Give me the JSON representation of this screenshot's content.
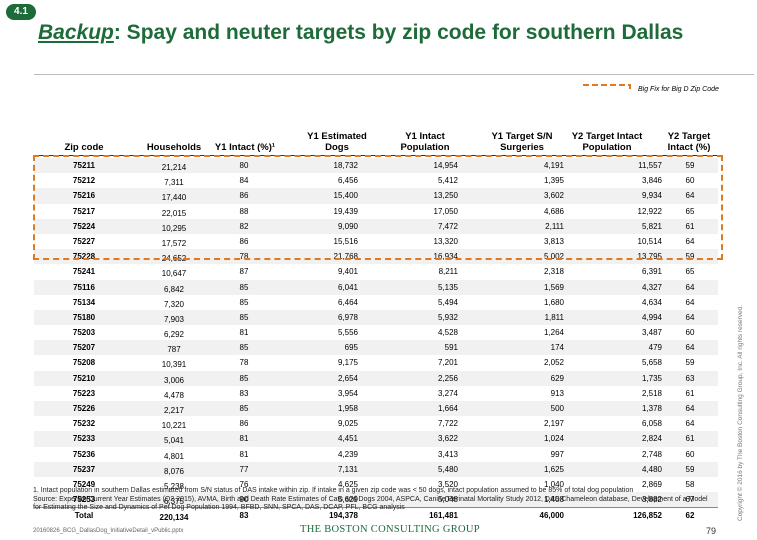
{
  "badge": "4.1",
  "title": {
    "prefix": "Backup",
    "rest": ": Spay and neuter targets by zip code for southern Dallas"
  },
  "legend": {
    "text": "Big Fix for Big D Zip Code",
    "color": "#e07a1f"
  },
  "table": {
    "headers": [
      "Zip code",
      "Households",
      "Y1 Intact (%)¹",
      "Y1 Estimated Dogs",
      "Y1 Intact Population",
      "Y1 Target S/N Surgeries",
      "Y2 Target Intact Population",
      "Y2 Target Intact (%)"
    ],
    "rows": [
      [
        "75211",
        "21,214",
        "80",
        "18,732",
        "14,954",
        "4,191",
        "11,557",
        "59"
      ],
      [
        "75212",
        "7,311",
        "84",
        "6,456",
        "5,412",
        "1,395",
        "3,846",
        "60"
      ],
      [
        "75216",
        "17,440",
        "86",
        "15,400",
        "13,250",
        "3,602",
        "9,934",
        "64"
      ],
      [
        "75217",
        "22,015",
        "88",
        "19,439",
        "17,050",
        "4,686",
        "12,922",
        "65"
      ],
      [
        "75224",
        "10,295",
        "82",
        "9,090",
        "7,472",
        "2,111",
        "5,821",
        "61"
      ],
      [
        "75227",
        "17,572",
        "86",
        "15,516",
        "13,320",
        "3,813",
        "10,514",
        "64"
      ],
      [
        "75228",
        "24,652",
        "78",
        "21,768",
        "16,934",
        "5,002",
        "13,795",
        "59"
      ],
      [
        "75241",
        "10,647",
        "87",
        "9,401",
        "8,211",
        "2,318",
        "6,391",
        "65"
      ],
      [
        "75116",
        "6,842",
        "85",
        "6,041",
        "5,135",
        "1,569",
        "4,327",
        "64"
      ],
      [
        "75134",
        "7,320",
        "85",
        "6,464",
        "5,494",
        "1,680",
        "4,634",
        "64"
      ],
      [
        "75180",
        "7,903",
        "85",
        "6,978",
        "5,932",
        "1,811",
        "4,994",
        "64"
      ],
      [
        "75203",
        "6,292",
        "81",
        "5,556",
        "4,528",
        "1,264",
        "3,487",
        "60"
      ],
      [
        "75207",
        "787",
        "85",
        "695",
        "591",
        "174",
        "479",
        "64"
      ],
      [
        "75208",
        "10,391",
        "78",
        "9,175",
        "7,201",
        "2,052",
        "5,658",
        "59"
      ],
      [
        "75210",
        "3,006",
        "85",
        "2,654",
        "2,256",
        "629",
        "1,735",
        "63"
      ],
      [
        "75223",
        "4,478",
        "83",
        "3,954",
        "3,274",
        "913",
        "2,518",
        "61"
      ],
      [
        "75226",
        "2,217",
        "85",
        "1,958",
        "1,664",
        "500",
        "1,378",
        "64"
      ],
      [
        "75232",
        "10,221",
        "86",
        "9,025",
        "7,722",
        "2,197",
        "6,058",
        "64"
      ],
      [
        "75233",
        "5,041",
        "81",
        "4,451",
        "3,622",
        "1,024",
        "2,824",
        "61"
      ],
      [
        "75236",
        "4,801",
        "81",
        "4,239",
        "3,413",
        "997",
        "2,748",
        "60"
      ],
      [
        "75237",
        "8,076",
        "77",
        "7,131",
        "5,480",
        "1,625",
        "4,480",
        "59"
      ],
      [
        "75249",
        "5,238",
        "76",
        "4,625",
        "3,520",
        "1,040",
        "2,869",
        "58"
      ],
      [
        "75253",
        "6,375",
        "90",
        "5,629",
        "5,048",
        "1,408",
        "3,882",
        "67"
      ]
    ],
    "total": [
      "Total",
      "220,134",
      "83",
      "194,378",
      "161,481",
      "46,000",
      "126,852",
      "62"
    ]
  },
  "footnote": {
    "line1": "1. Intact population in southern Dallas estimated from S/N status of DAS intake within zip. If intake in a given zip code was < 50 dogs, intact population assumed to be 85% of total dog population",
    "line2": "Source: Experian Current Year Estimates (Q2 2015), AVMA, Birth and Death Rate Estimates of Cats and Dogs 2004, ASPCA, Canine Perinatal Mortality Study 2012, DAS Chameleon database, Development of a Model for Estimating the Size and Dynamics of Pet Dog Population 1994, BFBD, SNN, SPCA, DAS, DCAP, PFL, BCG analysis"
  },
  "file_name": "20160826_BCG_DallasDog_InitiativeDetail_vPublic.pptx",
  "logo": "THE BOSTON CONSULTING GROUP",
  "page_number": "79",
  "copyright": "Copyright © 2016 by The Boston Consulting Group, Inc. All rights reserved."
}
